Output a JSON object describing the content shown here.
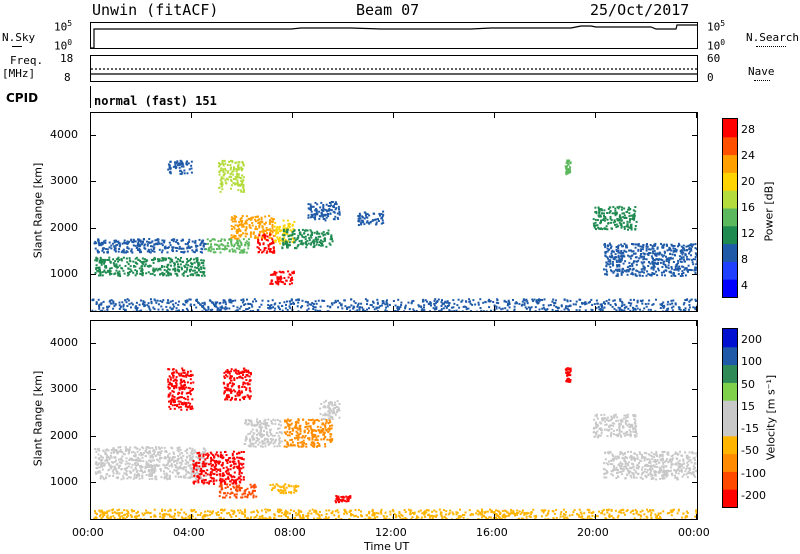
{
  "header": {
    "station": "Unwin (fitACF)",
    "beam": "Beam 07",
    "date": "25/Oct/2017"
  },
  "strips": {
    "nsky": {
      "label": "N.Sky",
      "ticks": [
        "10^5",
        "10^0"
      ]
    },
    "nsearch": {
      "label": "N.Search",
      "ticks": [
        "10^5",
        "10^0"
      ]
    },
    "freq": {
      "label_top": "Freq.",
      "label_unit": "[MHz]",
      "ticks": [
        "18",
        "8"
      ]
    },
    "nave": {
      "label": "Nave",
      "ticks": [
        "60",
        "0"
      ]
    },
    "cpid": {
      "label": "CPID",
      "value": "normal (fast) 151"
    }
  },
  "chart_data": [
    {
      "type": "heatmap",
      "name": "power-panel",
      "ylabel": "Slant Range [km]",
      "yticks": [
        "4000",
        "3000",
        "2000",
        "1000"
      ],
      "ytick_values": [
        4000,
        3000,
        2000,
        1000
      ],
      "ylim": [
        180,
        4500
      ],
      "xlim_hours": [
        0,
        24
      ],
      "colorbar": {
        "label": "Power [dB]",
        "ticks": [
          "28",
          "24",
          "20",
          "16",
          "12",
          "8",
          "4"
        ],
        "colors": [
          "#0000ff",
          "#2040ff",
          "#1e5aa8",
          "#1e8a50",
          "#5cb85c",
          "#b4dc3c",
          "#ffd400",
          "#ffa000",
          "#ff5000",
          "#ff0000"
        ]
      },
      "regions": [
        {
          "x": [
            0.1,
            4.5
          ],
          "y": [
            1500,
            1800
          ],
          "color": "#1e5aa8"
        },
        {
          "x": [
            0.1,
            4.5
          ],
          "y": [
            1000,
            1400
          ],
          "color": "#1e8a50"
        },
        {
          "x": [
            3.0,
            4.0
          ],
          "y": [
            3200,
            3500
          ],
          "color": "#1e5aa8"
        },
        {
          "x": [
            4.5,
            6.2
          ],
          "y": [
            1500,
            1800
          ],
          "color": "#5cb85c"
        },
        {
          "x": [
            5.5,
            7.2
          ],
          "y": [
            1800,
            2300
          ],
          "color": "#ffa000"
        },
        {
          "x": [
            6.5,
            7.2
          ],
          "y": [
            1500,
            1900
          ],
          "color": "#ff0000"
        },
        {
          "x": [
            7.2,
            8.0
          ],
          "y": [
            1700,
            2200
          ],
          "color": "#ffd400"
        },
        {
          "x": [
            7.0,
            8.0
          ],
          "y": [
            800,
            1100
          ],
          "color": "#ff0000"
        },
        {
          "x": [
            7.5,
            9.5
          ],
          "y": [
            1600,
            2000
          ],
          "color": "#1e8a50"
        },
        {
          "x": [
            8.5,
            9.8
          ],
          "y": [
            2200,
            2600
          ],
          "color": "#1e5aa8"
        },
        {
          "x": [
            5.0,
            6.0
          ],
          "y": [
            2800,
            3500
          ],
          "color": "#b4dc3c"
        },
        {
          "x": [
            10.5,
            11.5
          ],
          "y": [
            2100,
            2400
          ],
          "color": "#1e5aa8"
        },
        {
          "x": [
            18.7,
            18.9
          ],
          "y": [
            3200,
            3500
          ],
          "color": "#5cb85c"
        },
        {
          "x": [
            19.8,
            21.5
          ],
          "y": [
            2000,
            2500
          ],
          "color": "#1e8a50"
        },
        {
          "x": [
            20.2,
            24.0
          ],
          "y": [
            1000,
            1700
          ],
          "color": "#1e5aa8"
        },
        {
          "x": [
            0.0,
            24.0
          ],
          "y": [
            200,
            500
          ],
          "color": "#1e5aa8"
        }
      ]
    },
    {
      "type": "heatmap",
      "name": "velocity-panel",
      "xlabel": "Time UT",
      "ylabel": "Slant Range [km]",
      "yticks": [
        "4000",
        "3000",
        "2000",
        "1000"
      ],
      "ytick_values": [
        4000,
        3000,
        2000,
        1000
      ],
      "ylim": [
        180,
        4500
      ],
      "xlim_hours": [
        0,
        24
      ],
      "xticks": [
        "00:00",
        "04:00",
        "08:00",
        "12:00",
        "16:00",
        "20:00",
        "00:00"
      ],
      "xtick_values": [
        0,
        4,
        8,
        12,
        16,
        20,
        24
      ],
      "colorbar": {
        "label": "Velocity [m s⁻¹]",
        "ticks": [
          "200",
          "100",
          "50",
          "15",
          "-15",
          "-50",
          "-100",
          "-200"
        ],
        "colors": [
          "#ff0000",
          "#ff4a00",
          "#ff8c00",
          "#ffb400",
          "#c8c8c8",
          "#c8c8c8",
          "#7fd04a",
          "#2e8b57",
          "#1e5aa8",
          "#0010d0"
        ]
      },
      "regions": [
        {
          "x": [
            0.1,
            4.5
          ],
          "y": [
            1100,
            1800
          ],
          "color": "#c8c8c8"
        },
        {
          "x": [
            3.0,
            4.0
          ],
          "y": [
            2600,
            3500
          ],
          "color": "#ff0000"
        },
        {
          "x": [
            4.0,
            6.0
          ],
          "y": [
            1000,
            1700
          ],
          "color": "#ff0000"
        },
        {
          "x": [
            5.0,
            6.5
          ],
          "y": [
            700,
            1000
          ],
          "color": "#ff4a00"
        },
        {
          "x": [
            5.2,
            6.3
          ],
          "y": [
            2800,
            3500
          ],
          "color": "#ff0000"
        },
        {
          "x": [
            6.0,
            7.5
          ],
          "y": [
            1800,
            2400
          ],
          "color": "#c8c8c8"
        },
        {
          "x": [
            7.0,
            8.2
          ],
          "y": [
            800,
            1000
          ],
          "color": "#ffb400"
        },
        {
          "x": [
            7.6,
            9.5
          ],
          "y": [
            1800,
            2400
          ],
          "color": "#ff8c00"
        },
        {
          "x": [
            9.0,
            9.8
          ],
          "y": [
            2400,
            2800
          ],
          "color": "#c8c8c8"
        },
        {
          "x": [
            9.6,
            10.2
          ],
          "y": [
            600,
            750
          ],
          "color": "#ff0000"
        },
        {
          "x": [
            18.7,
            18.9
          ],
          "y": [
            3200,
            3500
          ],
          "color": "#ff0000"
        },
        {
          "x": [
            19.8,
            21.5
          ],
          "y": [
            2000,
            2500
          ],
          "color": "#c8c8c8"
        },
        {
          "x": [
            20.2,
            24.0
          ],
          "y": [
            1100,
            1700
          ],
          "color": "#c8c8c8"
        },
        {
          "x": [
            0.0,
            24.0
          ],
          "y": [
            200,
            450
          ],
          "color": "#ffb400"
        }
      ]
    }
  ]
}
